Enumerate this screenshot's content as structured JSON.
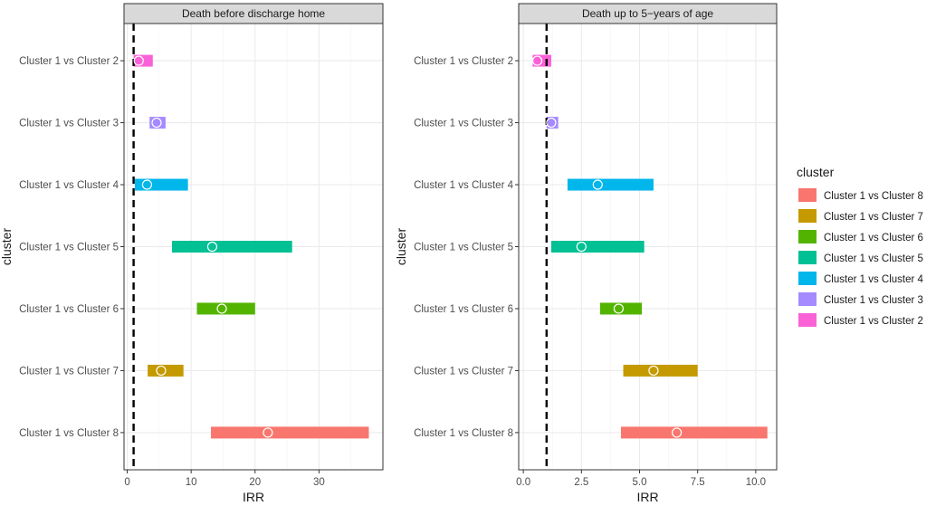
{
  "chart_data": {
    "type": "range-bar",
    "panels": [
      {
        "title": "Death before discharge home",
        "xlabel": "IRR",
        "ylabel": "cluster",
        "xlim": [
          -0.5,
          40
        ],
        "xticks": [
          0,
          10,
          20,
          30
        ],
        "xtick_labels": [
          "0",
          "10",
          "20",
          "30"
        ],
        "reference_line": 1,
        "categories": [
          "Cluster 1 vs Cluster 2",
          "Cluster 1 vs Cluster 3",
          "Cluster 1 vs Cluster 4",
          "Cluster 1 vs Cluster 5",
          "Cluster 1 vs Cluster 6",
          "Cluster 1 vs Cluster 7",
          "Cluster 1 vs Cluster 8"
        ],
        "estimates": [
          1.8,
          4.6,
          3.1,
          13.3,
          14.8,
          5.3,
          22.0
        ],
        "lower": [
          1.0,
          3.5,
          1.2,
          7.0,
          10.9,
          3.2,
          13.1
        ],
        "upper": [
          4.0,
          6.0,
          9.5,
          25.8,
          20.0,
          8.8,
          37.8
        ]
      },
      {
        "title": "Death up to 5−years of age",
        "xlabel": "IRR",
        "ylabel": "cluster",
        "xlim": [
          -0.2,
          10.9
        ],
        "xticks": [
          0,
          2.5,
          5,
          7.5,
          10
        ],
        "xtick_labels": [
          "0.0",
          "2.5",
          "5.0",
          "7.5",
          "10.0"
        ],
        "reference_line": 1,
        "categories": [
          "Cluster 1 vs Cluster 2",
          "Cluster 1 vs Cluster 3",
          "Cluster 1 vs Cluster 4",
          "Cluster 1 vs Cluster 5",
          "Cluster 1 vs Cluster 6",
          "Cluster 1 vs Cluster 7",
          "Cluster 1 vs Cluster 8"
        ],
        "estimates": [
          0.6,
          1.2,
          3.2,
          2.5,
          4.1,
          5.6,
          6.6
        ],
        "lower": [
          0.4,
          1.0,
          1.9,
          1.2,
          3.3,
          4.3,
          4.2
        ],
        "upper": [
          1.2,
          1.5,
          5.6,
          5.2,
          5.1,
          7.5,
          10.5
        ]
      }
    ],
    "legend": {
      "title": "cluster",
      "position": "right",
      "entries": [
        "Cluster 1 vs Cluster 8",
        "Cluster 1 vs Cluster 7",
        "Cluster 1 vs Cluster 6",
        "Cluster 1 vs Cluster 5",
        "Cluster 1 vs Cluster 4",
        "Cluster 1 vs Cluster 3",
        "Cluster 1 vs Cluster 2"
      ]
    },
    "colors": {
      "Cluster 1 vs Cluster 8": "#F8766D",
      "Cluster 1 vs Cluster 7": "#C49A00",
      "Cluster 1 vs Cluster 6": "#53B400",
      "Cluster 1 vs Cluster 5": "#00C094",
      "Cluster 1 vs Cluster 4": "#00B6EB",
      "Cluster 1 vs Cluster 3": "#A58AFF",
      "Cluster 1 vs Cluster 2": "#FB61D7"
    },
    "grid": true
  }
}
